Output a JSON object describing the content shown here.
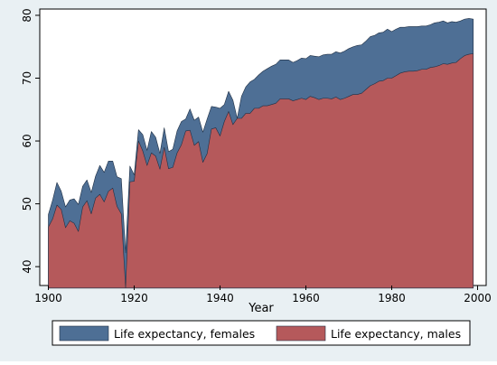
{
  "chart_data": {
    "type": "area",
    "xlabel": "Year",
    "ylabel": "",
    "xlim": [
      1900,
      2000
    ],
    "ylim": [
      37,
      81
    ],
    "x_ticks": [
      1900,
      1920,
      1940,
      1960,
      1980,
      2000
    ],
    "y_ticks": [
      40,
      50,
      60,
      70,
      80
    ],
    "baseline": 36.6,
    "grid": false,
    "legend_position": "bottom",
    "colors": {
      "background": "#e9f0f3",
      "plot_background": "#ffffff",
      "females": "#4e6f95",
      "males": "#b5595b"
    },
    "x": [
      1900,
      1901,
      1902,
      1903,
      1904,
      1905,
      1906,
      1907,
      1908,
      1909,
      1910,
      1911,
      1912,
      1913,
      1914,
      1915,
      1916,
      1917,
      1918,
      1919,
      1920,
      1921,
      1922,
      1923,
      1924,
      1925,
      1926,
      1927,
      1928,
      1929,
      1930,
      1931,
      1932,
      1933,
      1934,
      1935,
      1936,
      1937,
      1938,
      1939,
      1940,
      1941,
      1942,
      1943,
      1944,
      1945,
      1946,
      1947,
      1948,
      1949,
      1950,
      1951,
      1952,
      1953,
      1954,
      1955,
      1956,
      1957,
      1958,
      1959,
      1960,
      1961,
      1962,
      1963,
      1964,
      1965,
      1966,
      1967,
      1968,
      1969,
      1970,
      1971,
      1972,
      1973,
      1974,
      1975,
      1976,
      1977,
      1978,
      1979,
      1980,
      1981,
      1982,
      1983,
      1984,
      1985,
      1986,
      1987,
      1988,
      1989,
      1990,
      1991,
      1992,
      1993,
      1994,
      1995,
      1996,
      1997,
      1998,
      1999
    ],
    "series": [
      {
        "name": "Life expectancy, females",
        "color": "#4e6f95",
        "values": [
          48.3,
          50.6,
          53.4,
          52.0,
          49.5,
          50.6,
          50.8,
          49.9,
          52.8,
          53.8,
          51.8,
          54.4,
          56.1,
          55.0,
          56.8,
          56.8,
          54.3,
          54.0,
          42.2,
          56.0,
          54.6,
          61.8,
          61.0,
          58.5,
          61.5,
          60.6,
          58.0,
          62.1,
          58.3,
          58.7,
          61.6,
          63.1,
          63.5,
          65.1,
          63.3,
          63.8,
          61.4,
          63.5,
          65.5,
          65.4,
          65.2,
          65.8,
          67.9,
          66.5,
          63.6,
          67.1,
          68.6,
          69.4,
          69.8,
          70.5,
          71.1,
          71.5,
          71.9,
          72.2,
          72.9,
          72.9,
          72.9,
          72.5,
          72.8,
          73.2,
          73.1,
          73.6,
          73.5,
          73.4,
          73.7,
          73.8,
          73.8,
          74.2,
          74.0,
          74.3,
          74.7,
          75.0,
          75.2,
          75.3,
          75.9,
          76.6,
          76.8,
          77.2,
          77.3,
          77.8,
          77.4,
          77.8,
          78.1,
          78.1,
          78.2,
          78.2,
          78.2,
          78.3,
          78.3,
          78.5,
          78.8,
          78.9,
          79.1,
          78.8,
          79.0,
          78.9,
          79.1,
          79.4,
          79.5,
          79.4
        ]
      },
      {
        "name": "Life expectancy, males",
        "color": "#b5595b",
        "values": [
          46.3,
          47.6,
          49.8,
          49.1,
          46.2,
          47.3,
          46.9,
          45.6,
          49.5,
          50.5,
          48.4,
          50.9,
          51.5,
          50.3,
          52.0,
          52.5,
          49.6,
          48.4,
          36.6,
          53.5,
          53.6,
          60.0,
          58.4,
          56.1,
          58.1,
          57.6,
          55.5,
          59.0,
          55.6,
          55.8,
          58.1,
          59.4,
          61.6,
          61.7,
          59.3,
          59.9,
          56.6,
          58.0,
          61.9,
          62.1,
          60.8,
          63.1,
          64.7,
          62.6,
          63.6,
          63.6,
          64.4,
          64.4,
          65.2,
          65.2,
          65.6,
          65.6,
          65.8,
          66.0,
          66.7,
          66.7,
          66.7,
          66.4,
          66.6,
          66.8,
          66.6,
          67.1,
          66.9,
          66.6,
          66.8,
          66.8,
          66.7,
          67.0,
          66.6,
          66.8,
          67.1,
          67.4,
          67.4,
          67.6,
          68.2,
          68.8,
          69.1,
          69.5,
          69.6,
          70.0,
          70.0,
          70.4,
          70.8,
          71.0,
          71.1,
          71.1,
          71.2,
          71.4,
          71.4,
          71.7,
          71.8,
          72.0,
          72.3,
          72.2,
          72.4,
          72.5,
          73.1,
          73.6,
          73.8,
          73.9
        ]
      }
    ]
  }
}
